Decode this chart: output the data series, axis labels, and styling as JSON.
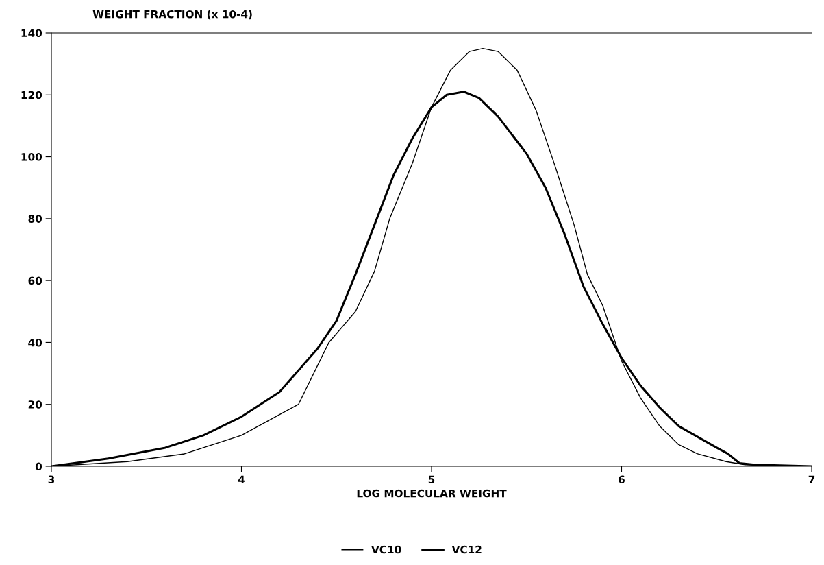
{
  "chart_data": {
    "type": "line",
    "title": "WEIGHT FRACTION (x 10-4)",
    "xlabel": "LOG MOLECULAR WEIGHT",
    "xlim": [
      3,
      7
    ],
    "xticks": [
      3,
      4,
      5,
      6,
      7
    ],
    "ylim": [
      0,
      140
    ],
    "yticks": [
      0,
      20,
      40,
      60,
      80,
      100,
      120,
      140
    ],
    "grid": false,
    "legend": "bottom",
    "line_style": "solid",
    "marker": "none",
    "series": [
      {
        "name": "VC10",
        "color": "#000000",
        "x": [
          3.0,
          3.4,
          3.7,
          4.0,
          4.3,
          4.46,
          4.6,
          4.7,
          4.78,
          4.9,
          5.0,
          5.1,
          5.2,
          5.27,
          5.35,
          5.45,
          5.55,
          5.65,
          5.75,
          5.82,
          5.9,
          6.0,
          6.1,
          6.2,
          6.3,
          6.4,
          6.55,
          6.65,
          7.0
        ],
        "values": [
          0,
          1.5,
          4,
          10,
          20,
          40,
          50,
          63,
          80,
          98,
          116,
          128,
          134,
          135,
          134,
          128,
          115,
          97,
          78,
          62,
          52,
          34,
          22,
          13,
          7,
          4,
          1.5,
          0.5,
          0
        ]
      },
      {
        "name": "VC12",
        "color": "#000000",
        "x": [
          3.0,
          3.3,
          3.6,
          3.8,
          4.0,
          4.2,
          4.4,
          4.5,
          4.6,
          4.7,
          4.8,
          4.9,
          5.0,
          5.08,
          5.17,
          5.25,
          5.35,
          5.5,
          5.6,
          5.7,
          5.8,
          5.9,
          6.0,
          6.1,
          6.2,
          6.3,
          6.4,
          6.5,
          6.56,
          6.62,
          6.7,
          7.0
        ],
        "values": [
          0,
          2.5,
          6,
          10,
          16,
          24,
          38,
          47,
          62,
          78,
          94,
          106,
          116,
          120,
          121,
          119,
          113,
          101,
          90,
          75,
          58,
          46,
          35,
          26,
          19,
          13,
          9.5,
          6,
          4,
          1,
          0.5,
          0
        ]
      }
    ]
  }
}
